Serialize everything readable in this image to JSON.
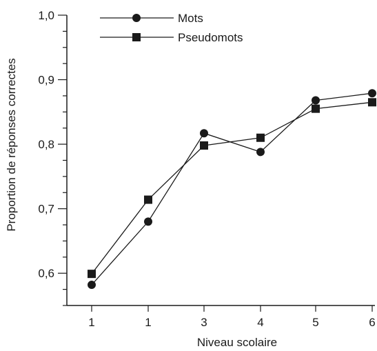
{
  "chart_data": {
    "type": "line",
    "categories": [
      "1",
      "1",
      "3",
      "4",
      "5",
      "6"
    ],
    "xlabel": "Niveau scolaire",
    "ylabel": "Proportion de réponses correctes",
    "ylim": [
      0.55,
      1.0
    ],
    "y_ticks": [
      "0,6",
      "0,7",
      "0,8",
      "0,9",
      "1,0"
    ],
    "grid": false,
    "legend_position": "top-left",
    "series": [
      {
        "name": "Mots",
        "marker": "circle",
        "values": [
          0.582,
          0.68,
          0.817,
          0.788,
          0.868,
          0.879
        ]
      },
      {
        "name": "Pseudomots",
        "marker": "square",
        "values": [
          0.599,
          0.714,
          0.798,
          0.81,
          0.855,
          0.865
        ]
      }
    ],
    "line_color": "#1a1a1a",
    "marker_color": "#1a1a1a"
  }
}
